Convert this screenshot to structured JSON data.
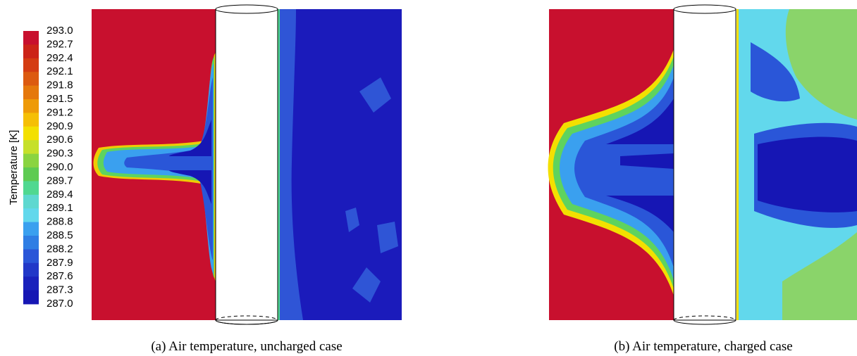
{
  "colorbar": {
    "label": "Temperature [K]",
    "ticks": [
      "293.0",
      "292.7",
      "292.4",
      "292.1",
      "291.8",
      "291.5",
      "291.2",
      "290.9",
      "290.6",
      "290.3",
      "290.0",
      "289.7",
      "289.4",
      "289.1",
      "288.8",
      "288.5",
      "288.2",
      "287.9",
      "287.6",
      "287.3",
      "287.0"
    ]
  },
  "panels": [
    {
      "caption": "(a) Air temperature, uncharged case"
    },
    {
      "caption": "(b) Air temperature, charged case"
    }
  ]
}
